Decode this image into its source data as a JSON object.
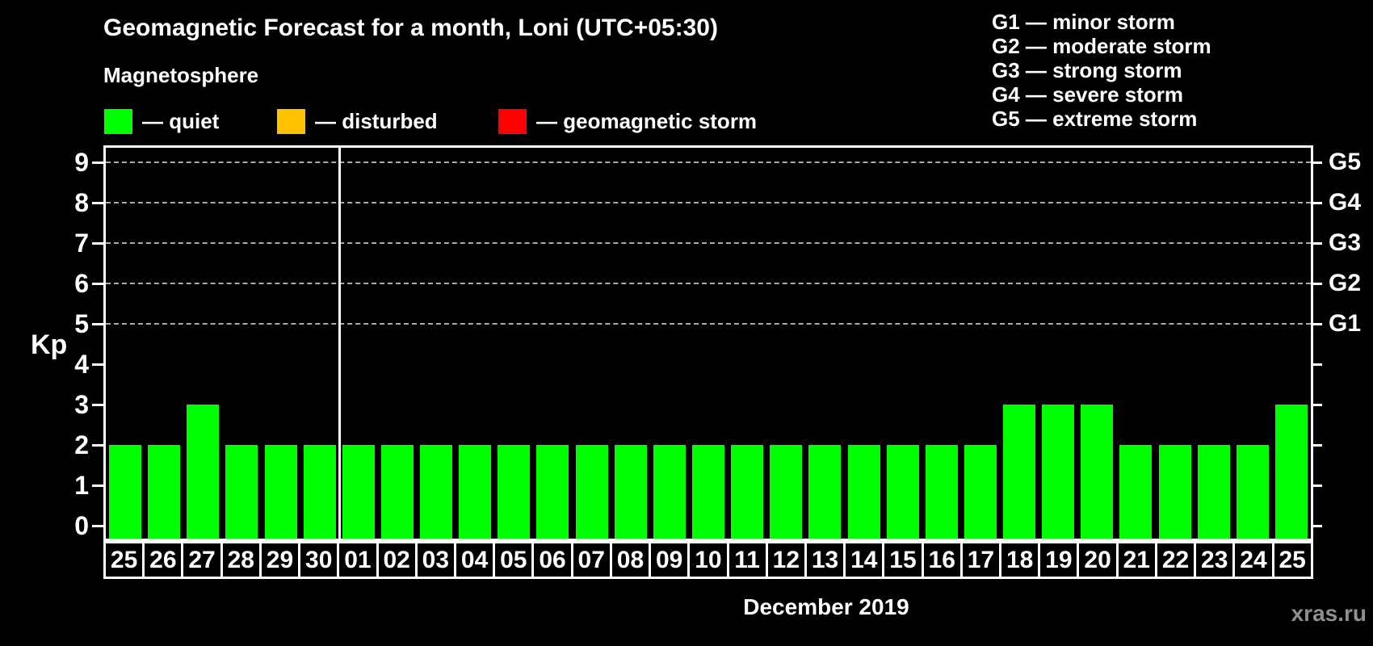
{
  "header": {
    "title": "Geomagnetic Forecast for a month, Loni (UTC+05:30)",
    "subtitle": "Magnetosphere"
  },
  "legend": {
    "items": [
      {
        "name": "quiet",
        "label": "— quiet",
        "color": "#00ff00",
        "x": 129
      },
      {
        "name": "disturbed",
        "label": "— disturbed",
        "color": "#ffc000",
        "x": 343
      },
      {
        "name": "geomagnetic-storm",
        "label": "— geomagnetic storm",
        "color": "#ff0000",
        "x": 617
      }
    ]
  },
  "g_legend": {
    "items": [
      "G1 — minor storm",
      "G2 — moderate storm",
      "G3 — strong storm",
      "G4 — severe storm",
      "G5 — extreme storm"
    ]
  },
  "watermark": "xras.ru",
  "chart_data": {
    "type": "bar",
    "title": "Geomagnetic Forecast for a month, Loni (UTC+05:30)",
    "ylabel": "Kp",
    "xlabel": "December 2019",
    "ylim": [
      0,
      9
    ],
    "y_ticks": [
      "0",
      "1",
      "2",
      "3",
      "4",
      "5",
      "6",
      "7",
      "8",
      "9"
    ],
    "right_axis": [
      {
        "label": "G1",
        "kp": 5
      },
      {
        "label": "G2",
        "kp": 6
      },
      {
        "label": "G3",
        "kp": 7
      },
      {
        "label": "G4",
        "kp": 8
      },
      {
        "label": "G5",
        "kp": 9
      }
    ],
    "gridlines_at_kp": [
      5,
      6,
      7,
      8,
      9
    ],
    "grid": "horizontal dashed at G-storm levels only",
    "legend_position": "top-left",
    "categories": [
      "25",
      "26",
      "27",
      "28",
      "29",
      "30",
      "01",
      "02",
      "03",
      "04",
      "05",
      "06",
      "07",
      "08",
      "09",
      "10",
      "11",
      "12",
      "13",
      "14",
      "15",
      "16",
      "17",
      "18",
      "19",
      "20",
      "21",
      "22",
      "23",
      "24",
      "25"
    ],
    "values": [
      2,
      2,
      3,
      2,
      2,
      2,
      2,
      2,
      2,
      2,
      2,
      2,
      2,
      2,
      2,
      2,
      2,
      2,
      2,
      2,
      2,
      2,
      2,
      3,
      3,
      3,
      2,
      2,
      2,
      2,
      3
    ],
    "bar_color": "#00ff00",
    "month_separator_after_index": 5
  },
  "colors": {
    "background": "#000000",
    "text": "#ffffff",
    "quiet": "#00ff00",
    "disturbed": "#ffc000",
    "storm": "#ff0000",
    "grid": "#aaaaaa",
    "frame": "#ffffff",
    "watermark": "#8f8f8f"
  }
}
